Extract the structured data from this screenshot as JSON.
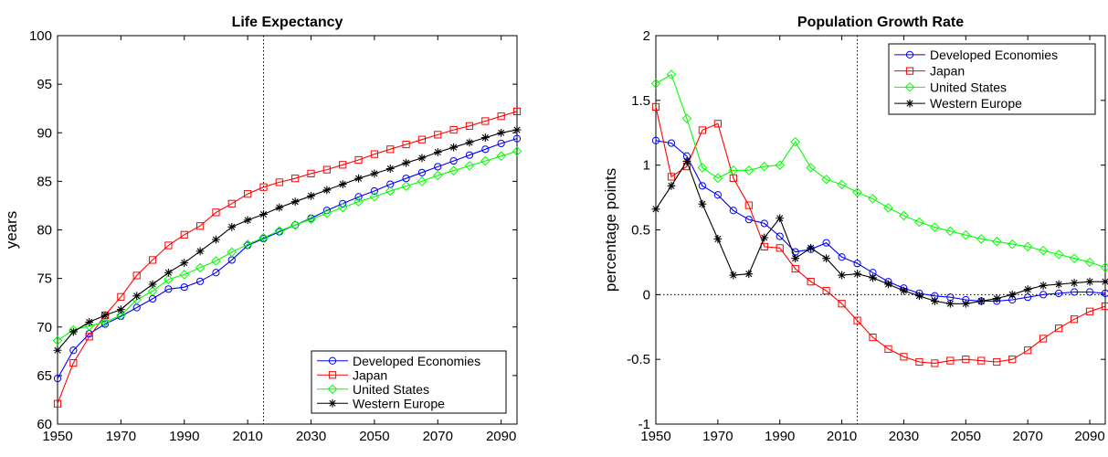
{
  "chart_data": [
    {
      "type": "line",
      "title": "Life Expectancy",
      "xlabel": "",
      "ylabel": "years",
      "xlim": [
        1950,
        2095
      ],
      "ylim": [
        60,
        100
      ],
      "xticks": [
        1950,
        1970,
        1990,
        2010,
        2030,
        2050,
        2070,
        2090
      ],
      "yticks": [
        60,
        65,
        70,
        75,
        80,
        85,
        90,
        95,
        100
      ],
      "vline": 2015,
      "legend_position": "bottom-right",
      "x": [
        1950,
        1955,
        1960,
        1965,
        1970,
        1975,
        1980,
        1985,
        1990,
        1995,
        2000,
        2005,
        2010,
        2015,
        2020,
        2025,
        2030,
        2035,
        2040,
        2045,
        2050,
        2055,
        2060,
        2065,
        2070,
        2075,
        2080,
        2085,
        2090,
        2095
      ],
      "series": [
        {
          "name": "Developed Economies",
          "color": "#0000ff",
          "marker": "circle",
          "values": [
            64.7,
            67.6,
            69.3,
            70.3,
            71.1,
            72.0,
            72.9,
            73.9,
            74.1,
            74.7,
            75.6,
            76.9,
            78.4,
            79.1,
            79.8,
            80.5,
            81.2,
            82.0,
            82.7,
            83.4,
            84.0,
            84.7,
            85.3,
            85.9,
            86.5,
            87.1,
            87.7,
            88.3,
            88.9,
            89.4
          ]
        },
        {
          "name": "Japan",
          "color": "#ff0000",
          "marker": "square",
          "values": [
            62.1,
            66.3,
            69.0,
            71.2,
            73.1,
            75.3,
            76.9,
            78.4,
            79.5,
            80.4,
            81.8,
            82.7,
            83.7,
            84.4,
            84.9,
            85.3,
            85.8,
            86.2,
            86.7,
            87.2,
            87.8,
            88.3,
            88.8,
            89.3,
            89.8,
            90.3,
            90.7,
            91.2,
            91.7,
            92.2
          ]
        },
        {
          "name": "United States",
          "color": "#00ff00",
          "marker": "diamond",
          "values": [
            68.6,
            69.7,
            70.1,
            70.5,
            71.2,
            72.8,
            73.7,
            74.9,
            75.4,
            76.1,
            76.8,
            77.7,
            78.5,
            79.2,
            79.9,
            80.5,
            81.1,
            81.7,
            82.3,
            82.9,
            83.4,
            84.0,
            84.5,
            85.0,
            85.6,
            86.1,
            86.6,
            87.1,
            87.6,
            88.1
          ]
        },
        {
          "name": "Western Europe",
          "color": "#000000",
          "marker": "star",
          "values": [
            67.6,
            69.5,
            70.5,
            71.2,
            71.8,
            73.2,
            74.4,
            75.6,
            76.6,
            77.8,
            79.0,
            80.3,
            81.0,
            81.6,
            82.3,
            82.9,
            83.5,
            84.1,
            84.7,
            85.3,
            85.8,
            86.3,
            86.9,
            87.4,
            88.0,
            88.5,
            89.0,
            89.5,
            90.0,
            90.3
          ]
        }
      ]
    },
    {
      "type": "line",
      "title": "Population Growth Rate",
      "xlabel": "",
      "ylabel": "percentage points",
      "xlim": [
        1950,
        2095
      ],
      "ylim": [
        -1,
        2
      ],
      "xticks": [
        1950,
        1970,
        1990,
        2010,
        2030,
        2050,
        2070,
        2090
      ],
      "yticks": [
        -1,
        -0.5,
        0,
        0.5,
        1,
        1.5,
        2
      ],
      "ytick_labels": [
        "-1",
        "-0.5",
        "0",
        "0.5",
        "1",
        "1.5",
        "2"
      ],
      "vline": 2015,
      "hline": 0,
      "legend_position": "top-right",
      "x": [
        1950,
        1955,
        1960,
        1965,
        1970,
        1975,
        1980,
        1985,
        1990,
        1995,
        2000,
        2005,
        2010,
        2015,
        2020,
        2025,
        2030,
        2035,
        2040,
        2045,
        2050,
        2055,
        2060,
        2065,
        2070,
        2075,
        2080,
        2085,
        2090,
        2095
      ],
      "series": [
        {
          "name": "Developed Economies",
          "color": "#0000ff",
          "marker": "circle",
          "values": [
            1.19,
            1.17,
            1.07,
            0.84,
            0.77,
            0.65,
            0.58,
            0.55,
            0.45,
            0.33,
            0.35,
            0.4,
            0.29,
            0.24,
            0.17,
            0.1,
            0.05,
            0.01,
            -0.01,
            -0.02,
            -0.04,
            -0.05,
            -0.05,
            -0.04,
            -0.02,
            0.0,
            0.01,
            0.02,
            0.02,
            0.01
          ]
        },
        {
          "name": "Japan",
          "color": "#ff0000",
          "marker": "square",
          "values": [
            1.45,
            0.91,
            0.99,
            1.27,
            1.32,
            0.9,
            0.69,
            0.37,
            0.36,
            0.2,
            0.1,
            0.03,
            -0.07,
            -0.2,
            -0.33,
            -0.42,
            -0.48,
            -0.52,
            -0.53,
            -0.51,
            -0.5,
            -0.51,
            -0.52,
            -0.5,
            -0.43,
            -0.34,
            -0.26,
            -0.19,
            -0.13,
            -0.09
          ]
        },
        {
          "name": "United States",
          "color": "#00ff00",
          "marker": "diamond",
          "values": [
            1.63,
            1.7,
            1.36,
            0.98,
            0.9,
            0.96,
            0.96,
            0.99,
            1.0,
            1.18,
            0.98,
            0.89,
            0.85,
            0.79,
            0.74,
            0.67,
            0.61,
            0.56,
            0.52,
            0.49,
            0.46,
            0.43,
            0.41,
            0.39,
            0.37,
            0.34,
            0.31,
            0.28,
            0.25,
            0.21
          ]
        },
        {
          "name": "Western Europe",
          "color": "#000000",
          "marker": "star",
          "values": [
            0.66,
            0.84,
            1.03,
            0.7,
            0.43,
            0.15,
            0.16,
            0.44,
            0.59,
            0.28,
            0.36,
            0.28,
            0.15,
            0.16,
            0.13,
            0.08,
            0.03,
            -0.01,
            -0.05,
            -0.07,
            -0.07,
            -0.05,
            -0.03,
            0.0,
            0.04,
            0.07,
            0.08,
            0.09,
            0.1,
            0.1
          ]
        }
      ]
    }
  ]
}
